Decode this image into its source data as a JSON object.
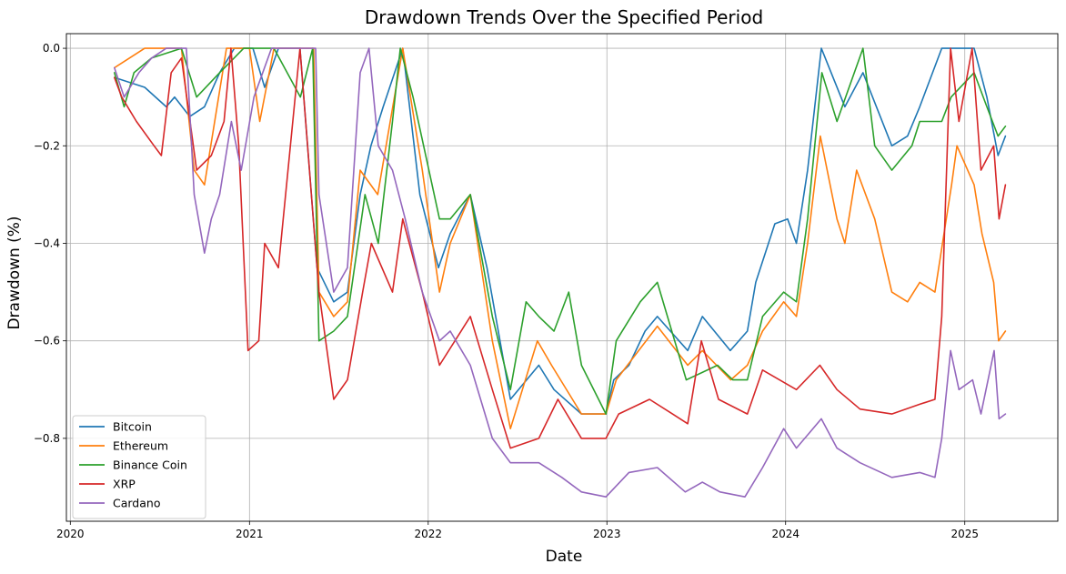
{
  "chart_data": {
    "type": "line",
    "title": "Drawdown Trends Over the Specified Period",
    "xlabel": "Date",
    "ylabel": "Drawdown (%)",
    "xlim": [
      "2019-12-24",
      "2025-07-10"
    ],
    "ylim": [
      -0.97,
      0.03
    ],
    "x_ticks": [
      "2020-01-01",
      "2021-01-01",
      "2022-01-01",
      "2023-01-01",
      "2024-01-01",
      "2025-01-01"
    ],
    "x_tick_labels": [
      "2020",
      "2021",
      "2022",
      "2023",
      "2024",
      "2025"
    ],
    "y_ticks": [
      0.0,
      -0.2,
      -0.4,
      -0.6,
      -0.8
    ],
    "y_tick_labels": [
      "0.0",
      "−0.2",
      "−0.4",
      "−0.6",
      "−0.8"
    ],
    "grid": true,
    "legend_position": "lower-left",
    "series": [
      {
        "name": "Bitcoin",
        "color": "#1f77b4",
        "points": [
          [
            "2020-03-31",
            -0.06
          ],
          [
            "2020-06-01",
            -0.08
          ],
          [
            "2020-07-15",
            -0.12
          ],
          [
            "2020-08-01",
            -0.1
          ],
          [
            "2020-09-01",
            -0.14
          ],
          [
            "2020-10-01",
            -0.12
          ],
          [
            "2020-11-01",
            -0.05
          ],
          [
            "2020-12-01",
            0.0
          ],
          [
            "2021-01-08",
            0.0
          ],
          [
            "2021-02-01",
            -0.08
          ],
          [
            "2021-03-01",
            0.0
          ],
          [
            "2021-04-14",
            0.0
          ],
          [
            "2021-05-19",
            -0.45
          ],
          [
            "2021-06-22",
            -0.52
          ],
          [
            "2021-07-20",
            -0.5
          ],
          [
            "2021-08-15",
            -0.3
          ],
          [
            "2021-09-06",
            -0.2
          ],
          [
            "2021-10-01",
            -0.12
          ],
          [
            "2021-11-10",
            0.0
          ],
          [
            "2021-12-15",
            -0.3
          ],
          [
            "2022-01-22",
            -0.45
          ],
          [
            "2022-02-15",
            -0.38
          ],
          [
            "2022-03-28",
            -0.3
          ],
          [
            "2022-05-01",
            -0.45
          ],
          [
            "2022-06-18",
            -0.72
          ],
          [
            "2022-08-15",
            -0.65
          ],
          [
            "2022-09-15",
            -0.7
          ],
          [
            "2022-11-10",
            -0.75
          ],
          [
            "2022-12-30",
            -0.75
          ],
          [
            "2023-01-15",
            -0.68
          ],
          [
            "2023-02-15",
            -0.65
          ],
          [
            "2023-03-20",
            -0.58
          ],
          [
            "2023-04-14",
            -0.55
          ],
          [
            "2023-06-15",
            -0.62
          ],
          [
            "2023-07-15",
            -0.55
          ],
          [
            "2023-09-10",
            -0.62
          ],
          [
            "2023-10-15",
            -0.58
          ],
          [
            "2023-11-01",
            -0.48
          ],
          [
            "2023-12-10",
            -0.36
          ],
          [
            "2024-01-05",
            -0.35
          ],
          [
            "2024-01-23",
            -0.4
          ],
          [
            "2024-02-15",
            -0.25
          ],
          [
            "2024-03-14",
            0.0
          ],
          [
            "2024-05-01",
            -0.12
          ],
          [
            "2024-06-07",
            -0.05
          ],
          [
            "2024-08-05",
            -0.2
          ],
          [
            "2024-09-06",
            -0.18
          ],
          [
            "2024-10-01",
            -0.12
          ],
          [
            "2024-11-15",
            0.0
          ],
          [
            "2024-12-17",
            0.0
          ],
          [
            "2025-01-20",
            0.0
          ],
          [
            "2025-02-15",
            -0.1
          ],
          [
            "2025-03-10",
            -0.22
          ],
          [
            "2025-03-25",
            -0.18
          ]
        ]
      },
      {
        "name": "Ethereum",
        "color": "#ff7f0e",
        "points": [
          [
            "2020-03-31",
            -0.04
          ],
          [
            "2020-05-01",
            -0.02
          ],
          [
            "2020-06-01",
            0.0
          ],
          [
            "2020-08-15",
            0.0
          ],
          [
            "2020-09-10",
            -0.25
          ],
          [
            "2020-10-01",
            -0.28
          ],
          [
            "2020-11-15",
            0.0
          ],
          [
            "2021-01-01",
            0.0
          ],
          [
            "2021-01-22",
            -0.15
          ],
          [
            "2021-02-20",
            0.0
          ],
          [
            "2021-05-12",
            0.0
          ],
          [
            "2021-05-23",
            -0.5
          ],
          [
            "2021-06-22",
            -0.55
          ],
          [
            "2021-07-20",
            -0.52
          ],
          [
            "2021-08-15",
            -0.25
          ],
          [
            "2021-09-20",
            -0.3
          ],
          [
            "2021-11-10",
            0.0
          ],
          [
            "2021-12-20",
            -0.25
          ],
          [
            "2022-01-24",
            -0.5
          ],
          [
            "2022-02-15",
            -0.4
          ],
          [
            "2022-03-28",
            -0.3
          ],
          [
            "2022-05-12",
            -0.6
          ],
          [
            "2022-06-18",
            -0.78
          ],
          [
            "2022-08-12",
            -0.6
          ],
          [
            "2022-09-10",
            -0.65
          ],
          [
            "2022-11-10",
            -0.75
          ],
          [
            "2022-12-30",
            -0.75
          ],
          [
            "2023-01-20",
            -0.68
          ],
          [
            "2023-04-14",
            -0.57
          ],
          [
            "2023-06-15",
            -0.65
          ],
          [
            "2023-07-15",
            -0.62
          ],
          [
            "2023-09-11",
            -0.68
          ],
          [
            "2023-10-15",
            -0.65
          ],
          [
            "2023-11-15",
            -0.58
          ],
          [
            "2023-12-28",
            -0.52
          ],
          [
            "2024-01-23",
            -0.55
          ],
          [
            "2024-02-15",
            -0.4
          ],
          [
            "2024-03-12",
            -0.18
          ],
          [
            "2024-04-15",
            -0.35
          ],
          [
            "2024-05-01",
            -0.4
          ],
          [
            "2024-05-25",
            -0.25
          ],
          [
            "2024-07-01",
            -0.35
          ],
          [
            "2024-08-05",
            -0.5
          ],
          [
            "2024-09-06",
            -0.52
          ],
          [
            "2024-10-01",
            -0.48
          ],
          [
            "2024-11-01",
            -0.5
          ],
          [
            "2024-12-05",
            -0.28
          ],
          [
            "2024-12-16",
            -0.2
          ],
          [
            "2025-01-20",
            -0.28
          ],
          [
            "2025-02-05",
            -0.38
          ],
          [
            "2025-03-01",
            -0.48
          ],
          [
            "2025-03-11",
            -0.6
          ],
          [
            "2025-03-25",
            -0.58
          ]
        ]
      },
      {
        "name": "Binance Coin",
        "color": "#2ca02c",
        "points": [
          [
            "2020-03-31",
            -0.05
          ],
          [
            "2020-04-20",
            -0.12
          ],
          [
            "2020-05-10",
            -0.05
          ],
          [
            "2020-06-15",
            -0.02
          ],
          [
            "2020-08-15",
            0.0
          ],
          [
            "2020-09-15",
            -0.1
          ],
          [
            "2020-11-01",
            -0.05
          ],
          [
            "2020-12-20",
            0.0
          ],
          [
            "2021-02-20",
            0.0
          ],
          [
            "2021-04-15",
            -0.1
          ],
          [
            "2021-05-10",
            0.0
          ],
          [
            "2021-05-23",
            -0.6
          ],
          [
            "2021-06-22",
            -0.58
          ],
          [
            "2021-07-20",
            -0.55
          ],
          [
            "2021-08-25",
            -0.3
          ],
          [
            "2021-09-21",
            -0.4
          ],
          [
            "2021-10-20",
            -0.15
          ],
          [
            "2021-11-05",
            0.0
          ],
          [
            "2021-12-01",
            -0.1
          ],
          [
            "2022-01-24",
            -0.35
          ],
          [
            "2022-02-15",
            -0.35
          ],
          [
            "2022-03-28",
            -0.3
          ],
          [
            "2022-05-12",
            -0.55
          ],
          [
            "2022-06-18",
            -0.7
          ],
          [
            "2022-07-20",
            -0.52
          ],
          [
            "2022-08-15",
            -0.55
          ],
          [
            "2022-09-15",
            -0.58
          ],
          [
            "2022-10-15",
            -0.5
          ],
          [
            "2022-11-10",
            -0.65
          ],
          [
            "2022-12-30",
            -0.75
          ],
          [
            "2023-01-20",
            -0.6
          ],
          [
            "2023-03-10",
            -0.52
          ],
          [
            "2023-04-14",
            -0.48
          ],
          [
            "2023-06-12",
            -0.68
          ],
          [
            "2023-08-15",
            -0.65
          ],
          [
            "2023-09-15",
            -0.68
          ],
          [
            "2023-10-15",
            -0.68
          ],
          [
            "2023-11-15",
            -0.55
          ],
          [
            "2023-12-28",
            -0.5
          ],
          [
            "2024-01-23",
            -0.52
          ],
          [
            "2024-02-15",
            -0.35
          ],
          [
            "2024-03-15",
            -0.05
          ],
          [
            "2024-04-15",
            -0.15
          ],
          [
            "2024-06-07",
            0.0
          ],
          [
            "2024-07-01",
            -0.2
          ],
          [
            "2024-08-05",
            -0.25
          ],
          [
            "2024-09-15",
            -0.2
          ],
          [
            "2024-10-01",
            -0.15
          ],
          [
            "2024-11-15",
            -0.15
          ],
          [
            "2024-12-04",
            -0.1
          ],
          [
            "2025-01-20",
            -0.05
          ],
          [
            "2025-02-15",
            -0.12
          ],
          [
            "2025-03-10",
            -0.18
          ],
          [
            "2025-03-25",
            -0.16
          ]
        ]
      },
      {
        "name": "XRP",
        "color": "#d62728",
        "points": [
          [
            "2020-03-31",
            -0.06
          ],
          [
            "2020-04-15",
            -0.1
          ],
          [
            "2020-05-15",
            -0.15
          ],
          [
            "2020-06-20",
            -0.2
          ],
          [
            "2020-07-05",
            -0.22
          ],
          [
            "2020-07-25",
            -0.05
          ],
          [
            "2020-08-15",
            -0.02
          ],
          [
            "2020-09-15",
            -0.25
          ],
          [
            "2020-10-15",
            -0.22
          ],
          [
            "2020-11-10",
            -0.15
          ],
          [
            "2020-11-24",
            0.0
          ],
          [
            "2020-12-10",
            -0.2
          ],
          [
            "2020-12-29",
            -0.62
          ],
          [
            "2021-01-20",
            -0.6
          ],
          [
            "2021-02-01",
            -0.4
          ],
          [
            "2021-03-01",
            -0.45
          ],
          [
            "2021-04-14",
            0.0
          ],
          [
            "2021-05-23",
            -0.5
          ],
          [
            "2021-06-22",
            -0.72
          ],
          [
            "2021-07-20",
            -0.68
          ],
          [
            "2021-08-20",
            -0.5
          ],
          [
            "2021-09-07",
            -0.4
          ],
          [
            "2021-10-20",
            -0.5
          ],
          [
            "2021-11-10",
            -0.35
          ],
          [
            "2021-12-20",
            -0.5
          ],
          [
            "2022-01-24",
            -0.65
          ],
          [
            "2022-03-28",
            -0.55
          ],
          [
            "2022-05-12",
            -0.7
          ],
          [
            "2022-06-18",
            -0.82
          ],
          [
            "2022-08-15",
            -0.8
          ],
          [
            "2022-09-23",
            -0.72
          ],
          [
            "2022-11-10",
            -0.8
          ],
          [
            "2022-12-30",
            -0.8
          ],
          [
            "2023-01-25",
            -0.75
          ],
          [
            "2023-03-29",
            -0.72
          ],
          [
            "2023-05-15",
            -0.75
          ],
          [
            "2023-06-15",
            -0.77
          ],
          [
            "2023-07-13",
            -0.6
          ],
          [
            "2023-08-17",
            -0.72
          ],
          [
            "2023-10-15",
            -0.75
          ],
          [
            "2023-11-15",
            -0.66
          ],
          [
            "2024-01-23",
            -0.7
          ],
          [
            "2024-03-11",
            -0.65
          ],
          [
            "2024-04-15",
            -0.7
          ],
          [
            "2024-06-01",
            -0.74
          ],
          [
            "2024-08-05",
            -0.75
          ],
          [
            "2024-10-01",
            -0.73
          ],
          [
            "2024-11-01",
            -0.72
          ],
          [
            "2024-11-15",
            -0.55
          ],
          [
            "2024-12-03",
            0.0
          ],
          [
            "2024-12-20",
            -0.15
          ],
          [
            "2025-01-16",
            0.0
          ],
          [
            "2025-02-03",
            -0.25
          ],
          [
            "2025-03-01",
            -0.2
          ],
          [
            "2025-03-12",
            -0.35
          ],
          [
            "2025-03-25",
            -0.28
          ]
        ]
      },
      {
        "name": "Cardano",
        "color": "#9467bd",
        "points": [
          [
            "2020-03-31",
            -0.04
          ],
          [
            "2020-04-20",
            -0.1
          ],
          [
            "2020-05-20",
            -0.05
          ],
          [
            "2020-06-15",
            -0.02
          ],
          [
            "2020-07-15",
            0.0
          ],
          [
            "2020-08-25",
            0.0
          ],
          [
            "2020-09-10",
            -0.3
          ],
          [
            "2020-10-01",
            -0.42
          ],
          [
            "2020-10-15",
            -0.35
          ],
          [
            "2020-11-01",
            -0.3
          ],
          [
            "2020-11-25",
            -0.15
          ],
          [
            "2020-12-15",
            -0.25
          ],
          [
            "2021-01-10",
            -0.1
          ],
          [
            "2021-02-15",
            0.0
          ],
          [
            "2021-05-16",
            0.0
          ],
          [
            "2021-05-23",
            -0.3
          ],
          [
            "2021-06-22",
            -0.5
          ],
          [
            "2021-07-20",
            -0.45
          ],
          [
            "2021-08-15",
            -0.05
          ],
          [
            "2021-09-02",
            0.0
          ],
          [
            "2021-09-21",
            -0.2
          ],
          [
            "2021-10-20",
            -0.25
          ],
          [
            "2021-11-15",
            -0.35
          ],
          [
            "2021-12-20",
            -0.5
          ],
          [
            "2022-01-24",
            -0.6
          ],
          [
            "2022-02-15",
            -0.58
          ],
          [
            "2022-03-28",
            -0.65
          ],
          [
            "2022-05-12",
            -0.8
          ],
          [
            "2022-06-18",
            -0.85
          ],
          [
            "2022-08-15",
            -0.85
          ],
          [
            "2022-10-01",
            -0.88
          ],
          [
            "2022-11-10",
            -0.91
          ],
          [
            "2022-12-30",
            -0.92
          ],
          [
            "2023-02-15",
            -0.87
          ],
          [
            "2023-04-14",
            -0.86
          ],
          [
            "2023-06-10",
            -0.91
          ],
          [
            "2023-07-15",
            -0.89
          ],
          [
            "2023-08-20",
            -0.91
          ],
          [
            "2023-10-10",
            -0.92
          ],
          [
            "2023-11-15",
            -0.86
          ],
          [
            "2023-12-28",
            -0.78
          ],
          [
            "2024-01-23",
            -0.82
          ],
          [
            "2024-03-14",
            -0.76
          ],
          [
            "2024-04-15",
            -0.82
          ],
          [
            "2024-06-01",
            -0.85
          ],
          [
            "2024-08-05",
            -0.88
          ],
          [
            "2024-10-01",
            -0.87
          ],
          [
            "2024-11-01",
            -0.88
          ],
          [
            "2024-11-15",
            -0.8
          ],
          [
            "2024-12-03",
            -0.62
          ],
          [
            "2024-12-20",
            -0.7
          ],
          [
            "2025-01-17",
            -0.68
          ],
          [
            "2025-02-03",
            -0.75
          ],
          [
            "2025-03-02",
            -0.62
          ],
          [
            "2025-03-12",
            -0.76
          ],
          [
            "2025-03-25",
            -0.75
          ]
        ]
      }
    ]
  }
}
